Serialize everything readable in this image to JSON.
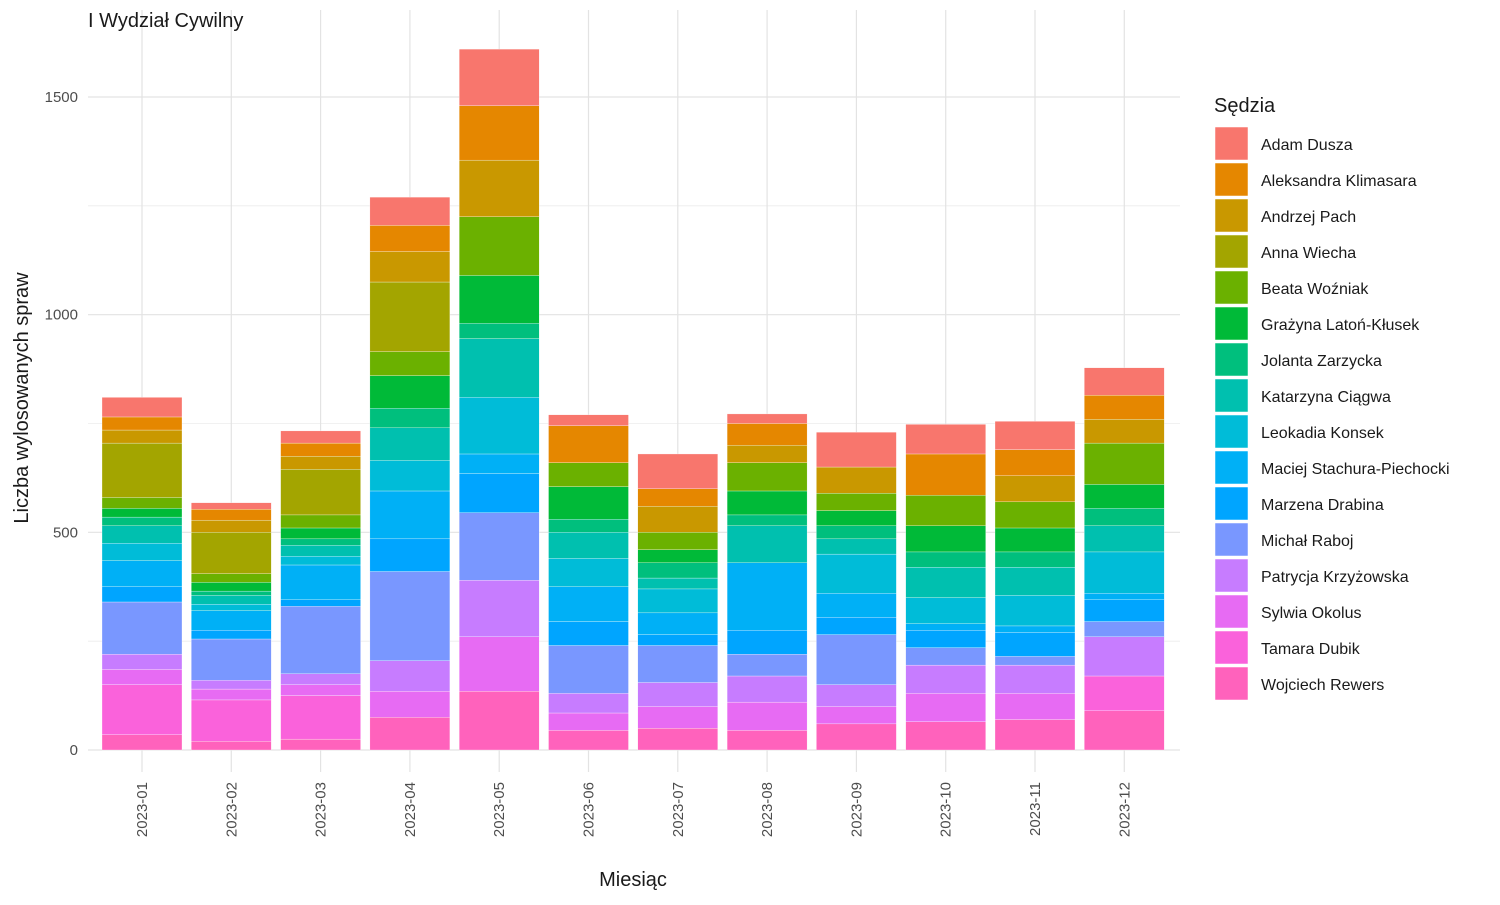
{
  "chart_data": {
    "type": "bar",
    "stacked": true,
    "title": "I Wydział Cywilny",
    "xlabel": "Miesiąc",
    "ylabel": "Liczba wylosowanych spraw",
    "ylim": [
      0,
      1620
    ],
    "yticks": [
      0,
      500,
      1000,
      1500
    ],
    "grid": true,
    "legend_title": "Sędzia",
    "legend_position": "right",
    "categories": [
      "2023-01",
      "2023-02",
      "2023-03",
      "2023-04",
      "2023-05",
      "2023-06",
      "2023-07",
      "2023-08",
      "2023-09",
      "2023-10",
      "2023-11",
      "2023-12"
    ],
    "series": [
      {
        "name": "Adam Dusza",
        "color": "#F8766D",
        "values": [
          45,
          15,
          28,
          65,
          130,
          25,
          80,
          22,
          80,
          68,
          65,
          63
        ]
      },
      {
        "name": "Aleksandra Klimasara",
        "color": "#E58700",
        "values": [
          30,
          25,
          30,
          60,
          125,
          85,
          40,
          50,
          0,
          95,
          60,
          55
        ]
      },
      {
        "name": "Andrzej Pach",
        "color": "#C99800",
        "values": [
          30,
          28,
          30,
          70,
          130,
          0,
          60,
          40,
          60,
          0,
          60,
          55
        ]
      },
      {
        "name": "Anna Wiecha",
        "color": "#A3A500",
        "values": [
          125,
          95,
          105,
          160,
          0,
          0,
          0,
          0,
          0,
          0,
          0,
          0
        ]
      },
      {
        "name": "Beata Woźniak",
        "color": "#6BB100",
        "values": [
          25,
          20,
          30,
          55,
          135,
          55,
          40,
          65,
          40,
          70,
          60,
          95
        ]
      },
      {
        "name": "Grażyna Latoń-Kłusek",
        "color": "#00BA38",
        "values": [
          20,
          20,
          25,
          75,
          110,
          75,
          30,
          55,
          35,
          60,
          55,
          55
        ]
      },
      {
        "name": "Jolanta Zarzycka",
        "color": "#00BF7D",
        "values": [
          20,
          10,
          15,
          45,
          35,
          30,
          35,
          25,
          30,
          35,
          35,
          40
        ]
      },
      {
        "name": "Katarzyna Ciągwa",
        "color": "#00C0AF",
        "values": [
          40,
          20,
          25,
          75,
          135,
          60,
          25,
          85,
          35,
          70,
          65,
          60
        ]
      },
      {
        "name": "Leokadia Konsek",
        "color": "#00BCD8",
        "values": [
          40,
          15,
          20,
          70,
          130,
          65,
          55,
          0,
          90,
          60,
          70,
          95
        ]
      },
      {
        "name": "Maciej Stachura-Piechocki",
        "color": "#00B0F6",
        "values": [
          60,
          45,
          80,
          110,
          45,
          80,
          50,
          155,
          55,
          15,
          15,
          15
        ]
      },
      {
        "name": "Marzena Drabina",
        "color": "#00A5FF",
        "values": [
          35,
          20,
          15,
          75,
          90,
          55,
          25,
          55,
          40,
          40,
          55,
          50
        ]
      },
      {
        "name": "Michał Raboj",
        "color": "#7997FF",
        "values": [
          120,
          95,
          155,
          205,
          155,
          110,
          85,
          50,
          115,
          40,
          20,
          35
        ]
      },
      {
        "name": "Patrycja Krzyżowska",
        "color": "#C77CFF",
        "values": [
          35,
          20,
          25,
          70,
          130,
          45,
          55,
          60,
          50,
          65,
          65,
          90
        ]
      },
      {
        "name": "Sylwia Okolus",
        "color": "#E76BF3",
        "values": [
          35,
          25,
          25,
          60,
          125,
          40,
          50,
          65,
          40,
          65,
          60,
          0
        ]
      },
      {
        "name": "Tamara Dubik",
        "color": "#FA62DB",
        "values": [
          115,
          95,
          100,
          0,
          0,
          0,
          0,
          0,
          0,
          0,
          0,
          80
        ]
      },
      {
        "name": "Wojciech Rewers",
        "color": "#FF62BC",
        "values": [
          35,
          20,
          25,
          75,
          135,
          45,
          50,
          45,
          60,
          65,
          70,
          90
        ]
      }
    ]
  }
}
